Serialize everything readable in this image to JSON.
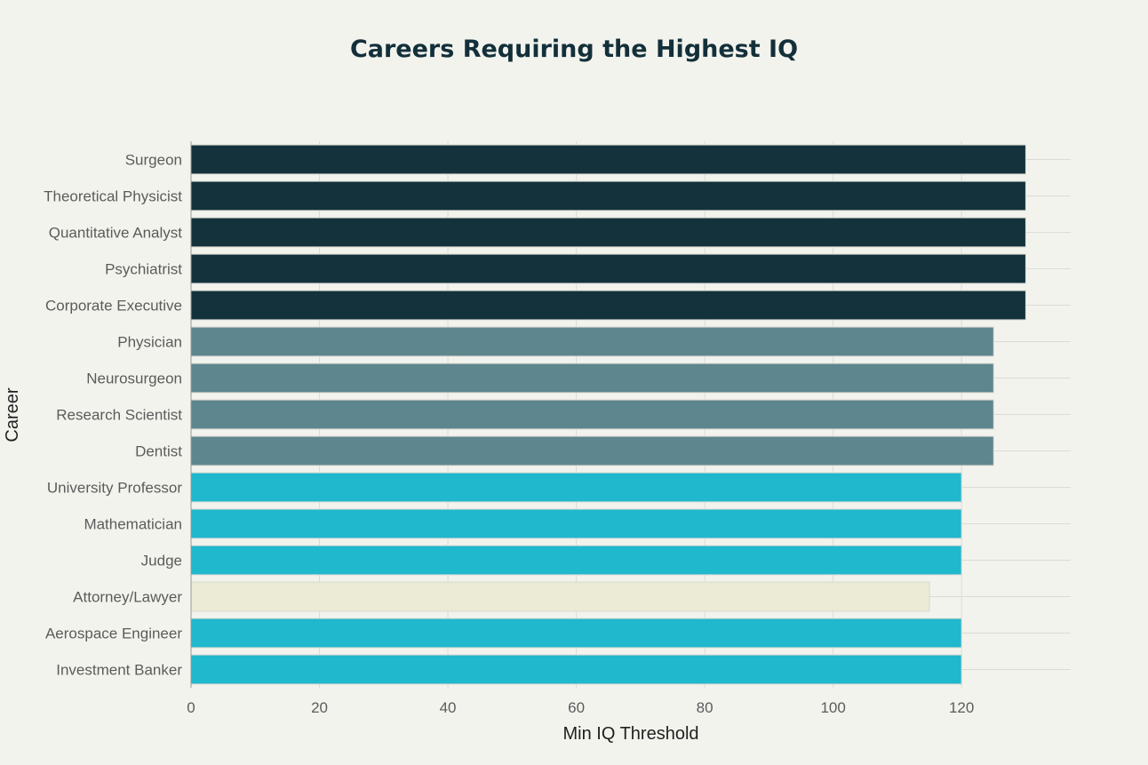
{
  "chart_data": {
    "type": "bar",
    "orientation": "horizontal",
    "title": "Careers Requiring the Highest IQ",
    "xlabel": "Min IQ Threshold",
    "ylabel": "Career",
    "xlim": [
      0,
      137
    ],
    "xticks": [
      0,
      20,
      40,
      60,
      80,
      100,
      120
    ],
    "grid": true,
    "categories": [
      "Surgeon",
      "Theoretical Physicist",
      "Quantitative Analyst",
      "Psychiatrist",
      "Corporate Executive",
      "Physician",
      "Neurosurgeon",
      "Research Scientist",
      "Dentist",
      "University Professor",
      "Mathematician",
      "Judge",
      "Attorney/Lawyer",
      "Aerospace Engineer",
      "Investment Banker"
    ],
    "values": [
      130,
      130,
      130,
      130,
      130,
      125,
      125,
      125,
      125,
      120,
      120,
      120,
      115,
      120,
      120
    ],
    "bar_colors": [
      "#13323b",
      "#13323b",
      "#13323b",
      "#13323b",
      "#13323b",
      "#5e868e",
      "#5e868e",
      "#5e868e",
      "#5e868e",
      "#1fb8cd",
      "#1fb8cd",
      "#1fb8cd",
      "#ecebd6",
      "#1fb8cd",
      "#1fb8cd"
    ]
  }
}
